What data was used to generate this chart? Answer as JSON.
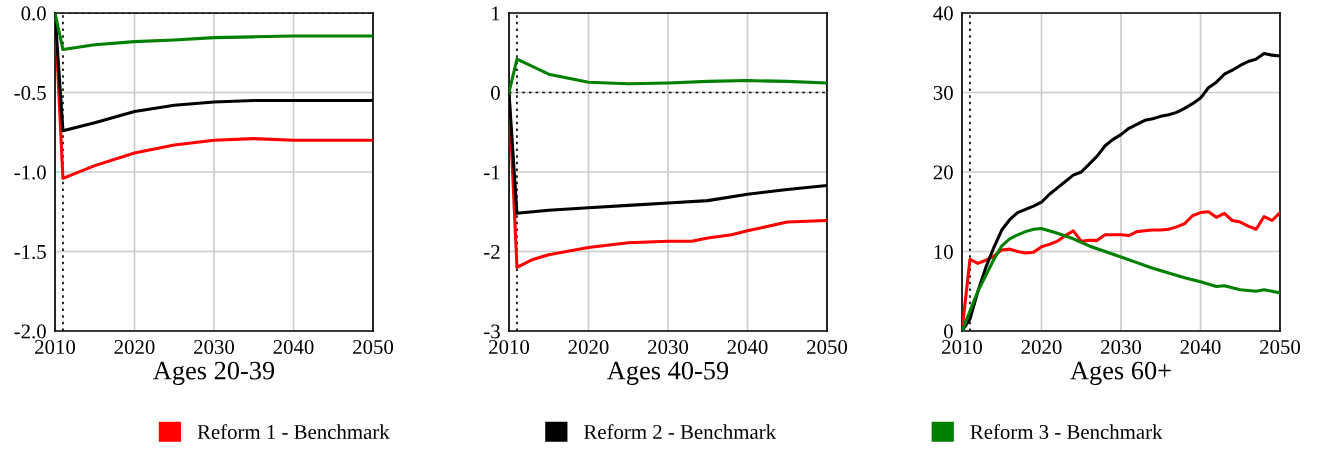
{
  "chart_data": [
    {
      "type": "line",
      "xlabel": "Ages 20-39",
      "xlim": [
        2010,
        2050
      ],
      "xticks": [
        2010,
        2020,
        2030,
        2040,
        2050
      ],
      "ylim": [
        -2.0,
        0.0
      ],
      "yticks": [
        {
          "value": -2.0,
          "label": "-2.0"
        },
        {
          "value": -1.5,
          "label": "-1.5"
        },
        {
          "value": -1.0,
          "label": "-1.0"
        },
        {
          "value": -0.5,
          "label": "-0.5"
        },
        {
          "value": 0.0,
          "label": "0.0"
        }
      ],
      "grid": true,
      "legend": false,
      "ref_lines": [
        {
          "axis": "y",
          "value": 0,
          "line_style": "dotted",
          "color": "#000000"
        },
        {
          "axis": "x",
          "value": 2011,
          "line_style": "dotted",
          "color": "#000000"
        }
      ],
      "series": [
        {
          "color": "#ff0000",
          "x": [
            2010,
            2011,
            2015,
            2020,
            2025,
            2030,
            2035,
            2040,
            2045,
            2050
          ],
          "values": [
            0,
            -1.04,
            -0.96,
            -0.88,
            -0.83,
            -0.8,
            -0.79,
            -0.8,
            -0.8,
            -0.8
          ]
        },
        {
          "color": "#000000",
          "x": [
            2010,
            2011,
            2015,
            2020,
            2025,
            2030,
            2035,
            2040,
            2045,
            2050
          ],
          "values": [
            0,
            -0.74,
            -0.69,
            -0.62,
            -0.58,
            -0.56,
            -0.55,
            -0.55,
            -0.55,
            -0.55
          ]
        },
        {
          "color": "#008000",
          "x": [
            2010,
            2011,
            2015,
            2020,
            2025,
            2030,
            2035,
            2040,
            2045,
            2050
          ],
          "values": [
            0,
            -0.23,
            -0.2,
            -0.18,
            -0.17,
            -0.155,
            -0.15,
            -0.145,
            -0.145,
            -0.145
          ]
        }
      ]
    },
    {
      "type": "line",
      "xlabel": "Ages 40-59",
      "xlim": [
        2010,
        2050
      ],
      "xticks": [
        2010,
        2020,
        2030,
        2040,
        2050
      ],
      "ylim": [
        -3,
        1
      ],
      "yticks": [
        -3,
        -2,
        -1,
        0,
        1
      ],
      "grid": true,
      "legend": "bottom",
      "ref_lines": [
        {
          "axis": "y",
          "value": 0,
          "line_style": "dotted",
          "color": "#000000"
        },
        {
          "axis": "x",
          "value": 2011,
          "line_style": "dotted",
          "color": "#000000"
        }
      ],
      "series": [
        {
          "name": "Reform 1 - Benchmark",
          "color": "#ff0000",
          "x": [
            2010,
            2011,
            2013,
            2015,
            2020,
            2025,
            2030,
            2033,
            2035,
            2038,
            2040,
            2045,
            2050
          ],
          "values": [
            0,
            -2.2,
            -2.1,
            -2.04,
            -1.95,
            -1.89,
            -1.87,
            -1.87,
            -1.83,
            -1.79,
            -1.74,
            -1.63,
            -1.61
          ]
        },
        {
          "name": "Reform 2 - Benchmark",
          "color": "#000000",
          "x": [
            2010,
            2011,
            2015,
            2020,
            2025,
            2030,
            2035,
            2040,
            2045,
            2050
          ],
          "values": [
            0,
            -1.52,
            -1.48,
            -1.45,
            -1.42,
            -1.39,
            -1.36,
            -1.28,
            -1.22,
            -1.17
          ]
        },
        {
          "name": "Reform 3 - Benchmark",
          "color": "#008000",
          "x": [
            2010,
            2011,
            2015,
            2020,
            2025,
            2030,
            2035,
            2040,
            2045,
            2050
          ],
          "values": [
            0,
            0.42,
            0.23,
            0.13,
            0.11,
            0.12,
            0.14,
            0.15,
            0.14,
            0.12
          ]
        }
      ]
    },
    {
      "type": "line",
      "xlabel": "Ages 60+",
      "xlim": [
        2010,
        2050
      ],
      "xticks": [
        2010,
        2020,
        2030,
        2040,
        2050
      ],
      "ylim": [
        0,
        40
      ],
      "yticks": [
        0,
        10,
        20,
        30,
        40
      ],
      "grid": true,
      "legend": false,
      "ref_lines": [
        {
          "axis": "x",
          "value": 2011,
          "line_style": "dotted",
          "color": "#000000"
        }
      ],
      "series": [
        {
          "color": "#ff0000",
          "x": [
            2010,
            2011,
            2012,
            2013,
            2014,
            2015,
            2016,
            2017,
            2018,
            2019,
            2020,
            2021,
            2022,
            2023,
            2024,
            2025,
            2026,
            2027,
            2028,
            2029,
            2030,
            2031,
            2032,
            2033,
            2034,
            2035,
            2036,
            2037,
            2038,
            2039,
            2040,
            2041,
            2042,
            2043,
            2044,
            2045,
            2046,
            2047,
            2048,
            2049,
            2050
          ],
          "values": [
            0,
            9.0,
            8.5,
            8.9,
            9.4,
            10.2,
            10.3,
            10.0,
            9.8,
            9.9,
            10.6,
            10.9,
            11.3,
            12.0,
            12.6,
            11.3,
            11.4,
            11.4,
            12.1,
            12.1,
            12.1,
            12.0,
            12.5,
            12.6,
            12.7,
            12.7,
            12.8,
            13.1,
            13.5,
            14.5,
            14.9,
            15.0,
            14.3,
            14.8,
            13.9,
            13.7,
            13.2,
            12.8,
            14.4,
            13.9,
            14.9
          ]
        },
        {
          "color": "#000000",
          "x": [
            2010,
            2011,
            2012,
            2013,
            2014,
            2015,
            2016,
            2017,
            2018,
            2019,
            2020,
            2021,
            2022,
            2023,
            2024,
            2025,
            2026,
            2027,
            2028,
            2029,
            2030,
            2031,
            2032,
            2033,
            2034,
            2035,
            2036,
            2037,
            2038,
            2039,
            2040,
            2041,
            2042,
            2043,
            2044,
            2045,
            2046,
            2047,
            2048,
            2049,
            2050
          ],
          "values": [
            0,
            1.5,
            5,
            8,
            10.5,
            12.7,
            14,
            14.9,
            15.3,
            15.7,
            16.2,
            17.2,
            18,
            18.8,
            19.6,
            20,
            21,
            22,
            23.3,
            24.1,
            24.7,
            25.5,
            26,
            26.5,
            26.7,
            27,
            27.2,
            27.5,
            28,
            28.6,
            29.3,
            30.6,
            31.3,
            32.3,
            32.8,
            33.4,
            33.9,
            34.2,
            34.9,
            34.7,
            34.6
          ]
        },
        {
          "color": "#008000",
          "x": [
            2010,
            2011,
            2012,
            2013,
            2014,
            2015,
            2016,
            2017,
            2018,
            2019,
            2020,
            2022,
            2024,
            2026,
            2028,
            2030,
            2032,
            2034,
            2036,
            2038,
            2040,
            2042,
            2043,
            2045,
            2047,
            2048,
            2050
          ],
          "values": [
            0,
            2.5,
            5,
            7,
            9,
            10.7,
            11.6,
            12.1,
            12.5,
            12.8,
            12.9,
            12.3,
            11.6,
            10.7,
            10.0,
            9.3,
            8.6,
            7.9,
            7.3,
            6.7,
            6.2,
            5.6,
            5.7,
            5.2,
            5.0,
            5.2,
            4.8
          ]
        }
      ]
    }
  ]
}
